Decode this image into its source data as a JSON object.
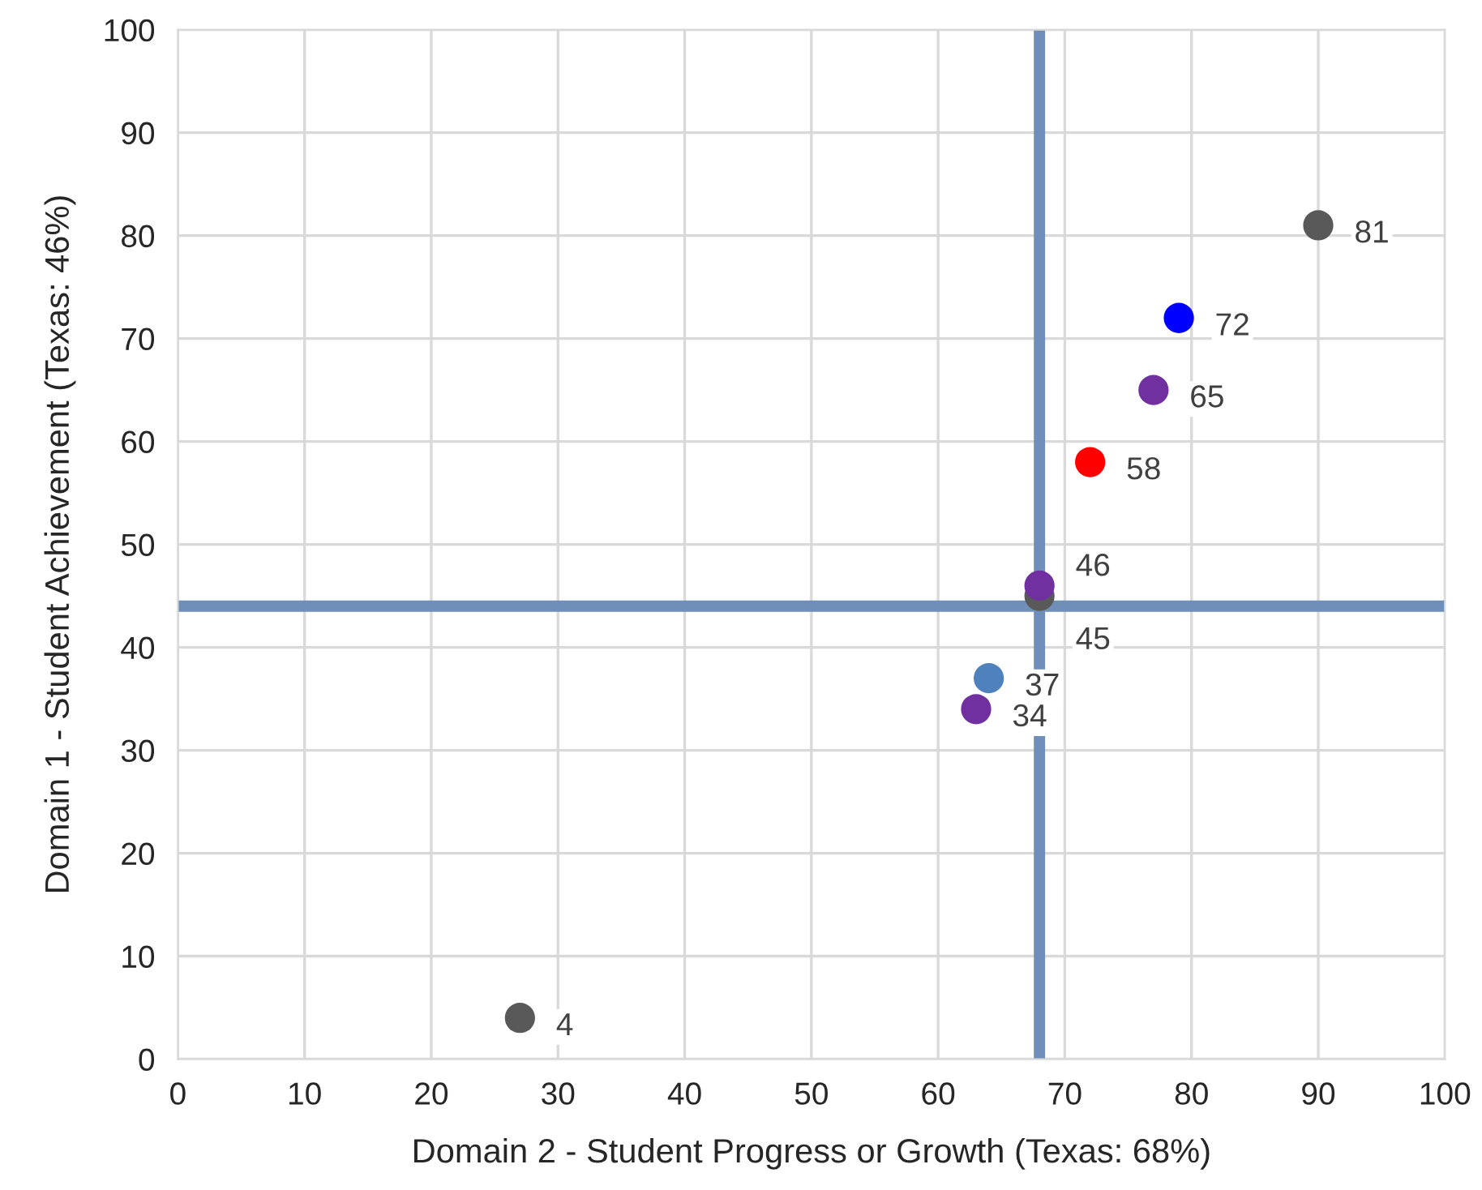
{
  "chart_data": {
    "type": "scatter",
    "xlabel": "Domain 2 - Student Progress or Growth (Texas: 68%)",
    "ylabel": "Domain 1 - Student Achievement (Texas: 46%)",
    "x": [
      27,
      90,
      79,
      77,
      72,
      68,
      68,
      64,
      63
    ],
    "values": [
      4,
      81,
      72,
      65,
      58,
      45,
      46,
      37,
      34
    ],
    "colors": [
      "#595959",
      "#595959",
      "#0000ff",
      "#7030a0",
      "#ff0000",
      "#595959",
      "#7030a0",
      "#4f81bd",
      "#7030a0"
    ],
    "data_labels": true,
    "marker": "circle",
    "xlim": [
      0,
      100
    ],
    "xticks": [
      0,
      10,
      20,
      30,
      40,
      50,
      60,
      70,
      80,
      90,
      100
    ],
    "ylim": [
      0,
      100
    ],
    "yticks": [
      0,
      10,
      20,
      30,
      40,
      50,
      60,
      70,
      80,
      90,
      100
    ],
    "grid": true,
    "ref_lines": [
      {
        "axis": "y",
        "value": 44,
        "color": "#6f8fb8"
      },
      {
        "axis": "x",
        "value": 68,
        "color": "#6f8fb8"
      }
    ]
  }
}
